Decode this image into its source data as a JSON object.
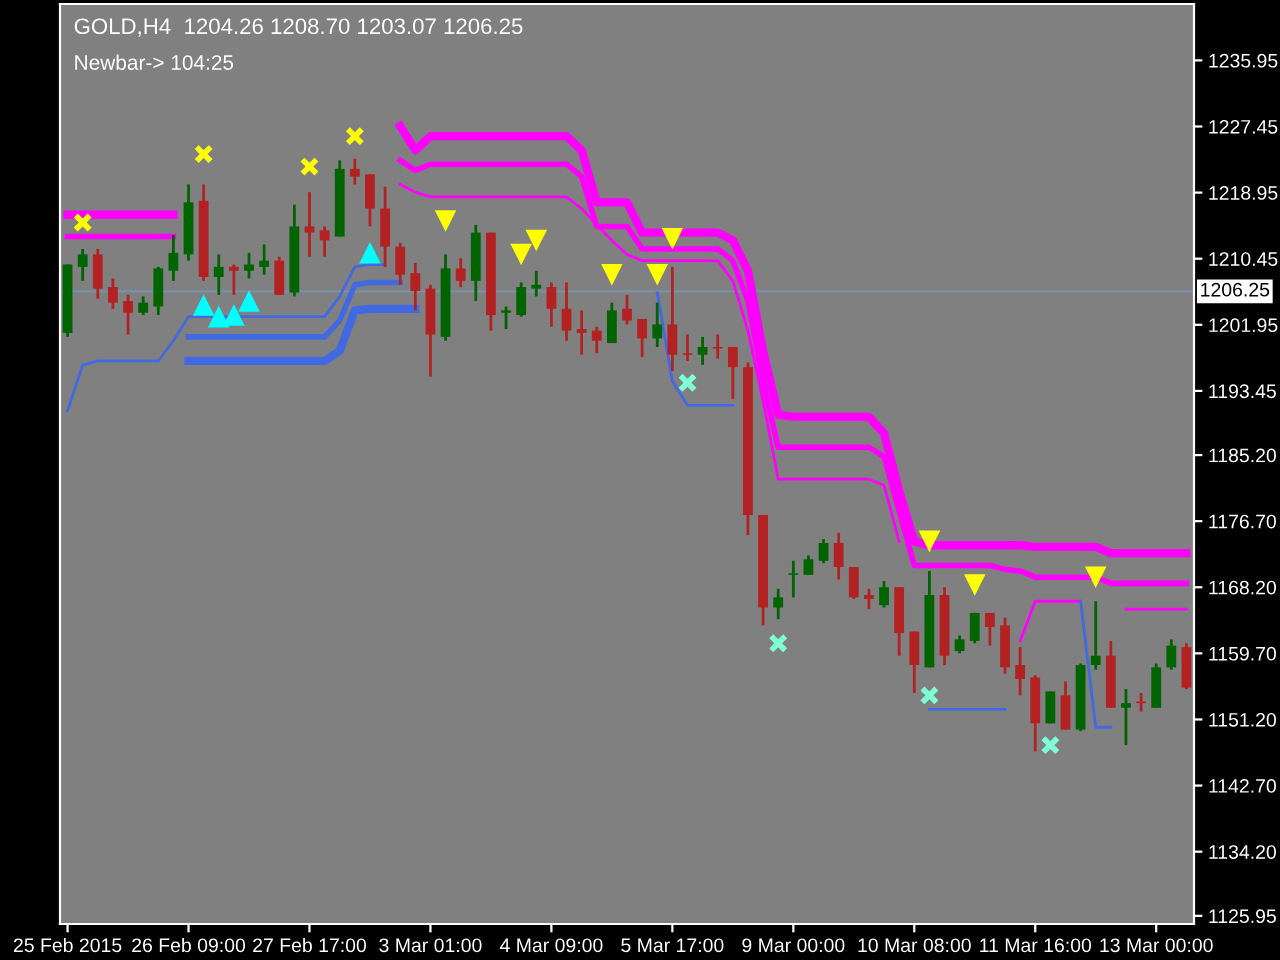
{
  "chart_data": {
    "type": "candlestick",
    "title": "GOLD,H4  1204.26 1208.70 1203.07 1206.25",
    "subtitle": "Newbar-> 104:25",
    "categories": [
      "25 Feb 2015",
      null,
      null,
      null,
      null,
      null,
      null,
      null,
      "26 Feb 09:00",
      null,
      null,
      null,
      null,
      null,
      null,
      null,
      "27 Feb 17:00",
      null,
      null,
      null,
      null,
      null,
      null,
      null,
      "3 Mar 01:00",
      null,
      null,
      null,
      null,
      null,
      null,
      null,
      "4 Mar 09:00",
      null,
      null,
      null,
      null,
      null,
      null,
      null,
      "5 Mar 17:00",
      null,
      null,
      null,
      null,
      null,
      null,
      null,
      "9 Mar 00:00",
      null,
      null,
      null,
      null,
      null,
      null,
      null,
      "10 Mar 08:00",
      null,
      null,
      null,
      null,
      null,
      null,
      null,
      "11 Mar 16:00",
      null,
      null,
      null,
      null,
      null,
      null,
      null,
      "13 Mar 00:00",
      null,
      null
    ],
    "ohlc": [
      [
        1200.9,
        1209.7,
        1200.4,
        1209.7
      ],
      [
        1209.4,
        1211.7,
        1207.6,
        1211.0
      ],
      [
        1211.0,
        1211.7,
        1205.3,
        1206.6
      ],
      [
        1206.8,
        1207.9,
        1204.0,
        1204.8
      ],
      [
        1205.0,
        1205.8,
        1200.7,
        1203.5
      ],
      [
        1203.5,
        1205.6,
        1203.2,
        1204.8
      ],
      [
        1204.3,
        1209.4,
        1203.2,
        1209.2
      ],
      [
        1208.9,
        1213.5,
        1207.6,
        1211.2
      ],
      [
        1211.0,
        1220.0,
        1210.2,
        1217.7
      ],
      [
        1217.9,
        1220.0,
        1207.6,
        1208.1
      ],
      [
        1208.1,
        1211.0,
        1205.8,
        1209.4
      ],
      [
        1209.4,
        1209.7,
        1205.8,
        1208.9
      ],
      [
        1208.9,
        1211.2,
        1207.9,
        1209.7
      ],
      [
        1209.4,
        1212.3,
        1208.4,
        1210.2
      ],
      [
        1210.2,
        1210.7,
        1205.8,
        1205.8
      ],
      [
        1206.1,
        1217.4,
        1205.6,
        1214.6
      ],
      [
        1214.6,
        1219.0,
        1210.7,
        1213.8
      ],
      [
        1214.1,
        1214.6,
        1210.7,
        1212.8
      ],
      [
        1213.3,
        1223.1,
        1213.3,
        1222.0
      ],
      [
        1222.0,
        1223.3,
        1220.0,
        1221.0
      ],
      [
        1221.3,
        1221.3,
        1214.6,
        1216.9
      ],
      [
        1216.9,
        1219.7,
        1209.4,
        1212.0
      ],
      [
        1212.0,
        1212.5,
        1207.1,
        1208.4
      ],
      [
        1208.6,
        1209.9,
        1203.8,
        1206.3
      ],
      [
        1206.6,
        1207.1,
        1195.3,
        1200.7
      ],
      [
        1200.4,
        1211.0,
        1199.9,
        1209.2
      ],
      [
        1209.2,
        1210.5,
        1206.8,
        1207.6
      ],
      [
        1207.6,
        1214.8,
        1205.0,
        1213.8
      ],
      [
        1213.8,
        1213.8,
        1201.2,
        1203.2
      ],
      [
        1203.5,
        1204.3,
        1201.4,
        1203.8
      ],
      [
        1203.2,
        1207.4,
        1203.0,
        1206.8
      ],
      [
        1206.6,
        1208.9,
        1205.6,
        1207.1
      ],
      [
        1206.8,
        1207.4,
        1201.7,
        1204.0
      ],
      [
        1204.0,
        1207.4,
        1199.9,
        1201.2
      ],
      [
        1201.4,
        1203.8,
        1198.1,
        1200.9
      ],
      [
        1201.2,
        1201.7,
        1198.3,
        1199.9
      ],
      [
        1199.6,
        1204.8,
        1199.6,
        1203.8
      ],
      [
        1204.0,
        1205.8,
        1202.0,
        1202.5
      ],
      [
        1202.7,
        1202.7,
        1197.8,
        1200.2
      ],
      [
        1200.2,
        1204.8,
        1199.1,
        1202.0
      ],
      [
        1202.0,
        1209.4,
        1196.0,
        1198.1
      ],
      [
        1198.3,
        1200.7,
        1197.3,
        1198.1
      ],
      [
        1198.1,
        1200.4,
        1196.8,
        1199.1
      ],
      [
        1199.1,
        1200.7,
        1197.6,
        1198.9
      ],
      [
        1199.1,
        1199.1,
        1192.4,
        1196.5
      ],
      [
        1196.5,
        1197.1,
        1174.9,
        1177.5
      ],
      [
        1177.5,
        1177.5,
        1163.3,
        1165.6
      ],
      [
        1165.6,
        1168.0,
        1164.1,
        1166.9
      ],
      [
        1169.8,
        1171.6,
        1166.9,
        1170.0
      ],
      [
        1169.8,
        1172.3,
        1169.8,
        1171.8
      ],
      [
        1171.6,
        1174.4,
        1171.3,
        1173.9
      ],
      [
        1173.9,
        1175.2,
        1169.2,
        1170.8
      ],
      [
        1170.8,
        1170.8,
        1166.7,
        1166.9
      ],
      [
        1167.2,
        1168.0,
        1165.4,
        1166.7
      ],
      [
        1165.9,
        1169.0,
        1165.6,
        1168.2
      ],
      [
        1168.2,
        1168.2,
        1159.4,
        1162.3
      ],
      [
        1162.5,
        1162.5,
        1154.6,
        1158.2
      ],
      [
        1157.9,
        1170.3,
        1157.9,
        1167.2
      ],
      [
        1167.2,
        1168.2,
        1158.2,
        1159.4
      ],
      [
        1160.0,
        1162.0,
        1159.7,
        1161.5
      ],
      [
        1161.3,
        1164.9,
        1161.0,
        1164.9
      ],
      [
        1164.9,
        1164.9,
        1160.7,
        1163.1
      ],
      [
        1163.3,
        1164.3,
        1157.1,
        1157.9
      ],
      [
        1158.2,
        1160.5,
        1154.3,
        1156.4
      ],
      [
        1156.6,
        1156.9,
        1147.1,
        1150.7
      ],
      [
        1150.7,
        1154.8,
        1150.7,
        1154.8
      ],
      [
        1154.3,
        1156.1,
        1149.9,
        1149.9
      ],
      [
        1149.9,
        1158.4,
        1149.7,
        1158.2
      ],
      [
        1158.2,
        1166.4,
        1157.6,
        1159.4
      ],
      [
        1159.4,
        1161.3,
        1152.7,
        1152.7
      ],
      [
        1152.7,
        1155.1,
        1147.9,
        1153.3
      ],
      [
        1153.5,
        1154.6,
        1152.2,
        1153.3
      ],
      [
        1152.7,
        1158.4,
        1152.7,
        1157.9
      ],
      [
        1157.9,
        1161.5,
        1157.6,
        1160.7
      ],
      [
        1160.5,
        1161.0,
        1155.1,
        1155.3
      ]
    ],
    "colors": [
      "#006400",
      "#006400",
      "#b22222",
      "#b22222",
      "#b22222",
      "#006400",
      "#006400",
      "#006400",
      "#006400",
      "#b22222",
      "#006400",
      "#b22222",
      "#006400",
      "#006400",
      "#b22222",
      "#006400",
      "#b22222",
      "#b22222",
      "#006400",
      "#b22222",
      "#b22222",
      "#b22222",
      "#b22222",
      "#b22222",
      "#b22222",
      "#006400",
      "#b22222",
      "#006400",
      "#b22222",
      "#006400",
      "#006400",
      "#006400",
      "#b22222",
      "#b22222",
      "#b22222",
      "#b22222",
      "#006400",
      "#b22222",
      "#b22222",
      "#006400",
      "#b22222",
      "#b22222",
      "#006400",
      "#b22222",
      "#b22222",
      "#b22222",
      "#b22222",
      "#006400",
      "#006400",
      "#006400",
      "#006400",
      "#b22222",
      "#b22222",
      "#b22222",
      "#006400",
      "#b22222",
      "#b22222",
      "#006400",
      "#b22222",
      "#006400",
      "#006400",
      "#b22222",
      "#b22222",
      "#b22222",
      "#b22222",
      "#006400",
      "#b22222",
      "#006400",
      "#006400",
      "#b22222",
      "#006400",
      "#b22222",
      "#006400",
      "#006400",
      "#b22222"
    ],
    "series": [
      {
        "type": "line",
        "color": "#ff00ff",
        "values": [
          1216.1,
          1216.1,
          1216.1,
          1216.1,
          1216.1,
          1216.1,
          1216.1,
          1216.1,
          null,
          null,
          null,
          null,
          null,
          null,
          null,
          null,
          null,
          null,
          null,
          null,
          null,
          null,
          1227.5,
          1224.4,
          1226.2,
          1226.2,
          1226.2,
          1226.2,
          1226.2,
          1226.2,
          1226.2,
          1226.2,
          1226.2,
          1226.2,
          1224.4,
          1217.7,
          1217.7,
          1217.7,
          1213.8,
          1213.8,
          1213.8,
          1213.8,
          1213.8,
          1213.8,
          1212.8,
          1208.9,
          1198.6,
          1190.4,
          1190.1,
          1190.1,
          1190.1,
          1190.1,
          1190.1,
          1190.1,
          1188.0,
          1180.6,
          1174.1,
          1173.6,
          1173.6,
          1173.6,
          1173.6,
          1173.6,
          1173.6,
          1173.6,
          1173.4,
          1173.4,
          1173.4,
          1173.4,
          1173.4,
          1172.6,
          1172.6,
          1172.6,
          1172.6,
          1172.6,
          1172.6
        ]
      },
      {
        "type": "line",
        "color": "#ff00ff",
        "values": [
          1213.3,
          1213.3,
          1213.3,
          1213.3,
          1213.3,
          1213.3,
          1213.3,
          1213.3,
          null,
          null,
          null,
          null,
          null,
          null,
          null,
          null,
          null,
          null,
          null,
          null,
          null,
          null,
          1223.1,
          1221.8,
          1222.6,
          1222.6,
          1222.6,
          1222.6,
          1222.6,
          1222.6,
          1222.6,
          1222.6,
          1222.6,
          1222.6,
          1221.0,
          1214.6,
          1214.6,
          1214.6,
          1211.7,
          1211.7,
          1211.7,
          1211.7,
          1211.7,
          1211.7,
          1210.2,
          1205.0,
          1194.7,
          1186.2,
          1186.2,
          1186.2,
          1186.2,
          1186.2,
          1186.2,
          1186.2,
          1185.0,
          1178.0,
          1171.0,
          1171.0,
          1171.0,
          1171.0,
          1171.0,
          1171.0,
          1170.5,
          1170.3,
          1169.5,
          1169.5,
          1169.5,
          1169.5,
          1169.5,
          1168.7,
          1168.7,
          1168.7,
          1168.7,
          1168.7,
          1168.7
        ]
      },
      {
        "type": "line",
        "color": "#ff00ff",
        "values": [
          null,
          null,
          null,
          null,
          null,
          null,
          null,
          null,
          null,
          null,
          null,
          null,
          null,
          null,
          null,
          null,
          null,
          null,
          null,
          null,
          null,
          null,
          1220.0,
          1219.0,
          1218.4,
          1218.4,
          1218.4,
          1218.4,
          1218.4,
          1218.4,
          1218.4,
          1218.4,
          1218.4,
          1218.4,
          1216.9,
          1214.8,
          1212.8,
          1211.0,
          1210.2,
          1210.2,
          1210.2,
          1210.2,
          1210.2,
          1210.2,
          1207.6,
          1201.2,
          1192.2,
          1182.1,
          1182.1,
          1182.1,
          1182.1,
          1182.1,
          1182.1,
          1182.1,
          1181.3,
          1174.1,
          null,
          null,
          null,
          null,
          null,
          null,
          null,
          1161.3,
          1166.4,
          1166.4,
          1166.4,
          1166.4,
          null,
          null,
          1165.4,
          1165.4,
          1165.4,
          1165.4,
          1165.4
        ]
      },
      {
        "type": "line",
        "color": "#4169e1",
        "values": [
          null,
          null,
          null,
          null,
          null,
          null,
          null,
          null,
          1197.3,
          1197.3,
          1197.3,
          1197.3,
          1197.3,
          1197.3,
          1197.3,
          1197.3,
          1197.3,
          1197.3,
          1198.6,
          1203.8,
          1204.0,
          1204.0,
          1204.0,
          1204.0,
          null,
          null,
          null,
          null,
          null,
          null,
          null,
          null,
          null,
          null,
          null,
          null,
          null,
          null,
          null,
          null,
          null,
          null,
          null,
          null,
          null,
          null,
          null,
          null,
          null,
          null,
          null,
          null,
          null,
          null,
          null,
          null,
          null,
          null,
          null,
          null,
          null,
          null,
          null,
          null,
          null,
          null,
          null,
          null,
          null,
          null,
          null,
          null,
          null,
          null,
          null
        ]
      },
      {
        "type": "line",
        "color": "#4169e1",
        "values": [
          null,
          null,
          null,
          null,
          null,
          null,
          null,
          null,
          1200.4,
          1200.4,
          1200.4,
          1200.4,
          1200.4,
          1200.4,
          1200.4,
          1200.4,
          1200.4,
          1200.4,
          1202.5,
          1207.1,
          1207.4,
          1207.4,
          1207.4,
          null,
          null,
          null,
          null,
          null,
          null,
          null,
          null,
          null,
          null,
          null,
          null,
          null,
          null,
          null,
          null,
          null,
          null,
          null,
          null,
          null,
          null,
          null,
          null,
          null,
          null,
          null,
          null,
          null,
          null,
          null,
          null,
          null,
          null,
          null,
          null,
          null,
          null,
          null,
          null,
          null,
          null,
          null,
          null,
          null,
          null,
          null,
          null,
          null,
          null,
          null,
          null
        ]
      },
      {
        "type": "line",
        "color": "#4169e1",
        "values": [
          1190.9,
          1196.8,
          1197.3,
          1197.3,
          1197.3,
          1197.3,
          1197.3,
          1199.9,
          1203.0,
          1203.0,
          1203.0,
          1203.0,
          1203.0,
          1203.0,
          1203.0,
          1203.0,
          1203.0,
          1203.0,
          1205.6,
          1209.4,
          1209.7,
          1209.7,
          null,
          null,
          null,
          null,
          null,
          null,
          null,
          null,
          null,
          null,
          null,
          null,
          null,
          null,
          null,
          null,
          null,
          1206.1,
          1194.7,
          1191.6,
          1191.6,
          1191.6,
          1191.6,
          null,
          null,
          null,
          null,
          null,
          null,
          null,
          null,
          null,
          null,
          null,
          null,
          1152.5,
          1152.5,
          1152.5,
          1152.5,
          1152.5,
          1152.5,
          null,
          null,
          null,
          null,
          1166.4,
          1150.2,
          1150.2,
          null,
          null,
          null,
          null,
          null
        ]
      },
      {
        "type": "scatter",
        "color": "#ffff00",
        "marker": "triangle",
        "values": [
          null,
          null,
          null,
          null,
          null,
          null,
          null,
          null,
          null,
          null,
          null,
          null,
          null,
          null,
          null,
          null,
          null,
          null,
          null,
          null,
          null,
          null,
          null,
          null,
          null,
          1215.3,
          null,
          null,
          null,
          null,
          1211.0,
          1212.8,
          null,
          null,
          null,
          null,
          1208.4,
          null,
          null,
          1208.4,
          1213.0,
          null,
          null,
          null,
          null,
          null,
          null,
          null,
          null,
          null,
          null,
          null,
          null,
          null,
          null,
          null,
          null,
          1174.1,
          null,
          null,
          1168.5,
          null,
          null,
          null,
          null,
          null,
          null,
          null,
          1169.5,
          null,
          null,
          null,
          null,
          null,
          null
        ]
      },
      {
        "type": "scatter",
        "color": "#00ffff",
        "marker": "triangle",
        "values": [
          null,
          null,
          null,
          null,
          null,
          null,
          null,
          null,
          null,
          1204.5,
          1203.0,
          1203.2,
          1205.0,
          null,
          null,
          null,
          null,
          null,
          null,
          null,
          1211.2,
          null,
          null,
          null,
          null,
          null,
          null,
          null,
          null,
          null,
          null,
          null,
          null,
          null,
          null,
          null,
          null,
          null,
          null,
          null,
          null,
          null,
          null,
          null,
          null,
          null,
          null,
          null,
          null,
          null,
          null,
          null,
          null,
          null,
          null,
          null,
          null,
          null,
          null,
          null,
          null,
          null,
          null,
          null,
          null,
          null,
          null,
          null,
          null,
          null,
          null,
          null,
          null,
          null,
          null
        ]
      },
      {
        "type": "scatter",
        "color": "#ffff00",
        "marker": "cross",
        "values": [
          null,
          1215.1,
          null,
          null,
          null,
          null,
          null,
          null,
          null,
          1223.9,
          null,
          null,
          null,
          null,
          null,
          null,
          1222.3,
          null,
          null,
          1226.2,
          null,
          null,
          null,
          null,
          null,
          null,
          null,
          null,
          null,
          null,
          null,
          null,
          null,
          null,
          null,
          null,
          null,
          null,
          null,
          null,
          null,
          null,
          null,
          null,
          null,
          null,
          null,
          null,
          null,
          null,
          null,
          null,
          null,
          null,
          null,
          null,
          null,
          null,
          null,
          null,
          null,
          null,
          null,
          null,
          null,
          null,
          null,
          null,
          null,
          null,
          null,
          null,
          null,
          null,
          null
        ]
      },
      {
        "type": "scatter",
        "color": "#7fffd4",
        "marker": "cross",
        "values": [
          null,
          null,
          null,
          null,
          null,
          null,
          null,
          null,
          null,
          null,
          null,
          null,
          null,
          null,
          null,
          null,
          null,
          null,
          null,
          null,
          null,
          null,
          null,
          null,
          null,
          null,
          null,
          null,
          null,
          null,
          null,
          null,
          null,
          null,
          null,
          null,
          null,
          null,
          null,
          null,
          null,
          1194.5,
          null,
          null,
          null,
          null,
          null,
          1161.0,
          null,
          null,
          null,
          null,
          null,
          null,
          null,
          null,
          null,
          1154.3,
          null,
          null,
          null,
          null,
          null,
          null,
          null,
          1147.9,
          null,
          null,
          null,
          null,
          null,
          null,
          null,
          null,
          null
        ]
      }
    ],
    "ylim": [
      1124.9,
      1243.2
    ],
    "yticks": [
      1235.95,
      1227.45,
      1218.95,
      1210.45,
      1201.95,
      1193.45,
      {
        "value": 1185.2,
        "label": "1185.20"
      },
      {
        "value": 1176.7,
        "label": "1176.70"
      },
      {
        "value": 1168.2,
        "label": "1168.20"
      },
      {
        "value": 1159.7,
        "label": "1159.70"
      },
      {
        "value": 1151.2,
        "label": "1151.20"
      },
      {
        "value": 1142.7,
        "label": "1142.70"
      },
      {
        "value": 1134.2,
        "label": "1134.20"
      },
      1125.95
    ],
    "ref_lines": [
      {
        "axis": "y",
        "value": 1206.25,
        "label": "1206.25",
        "color": "#7890a8"
      }
    ]
  }
}
